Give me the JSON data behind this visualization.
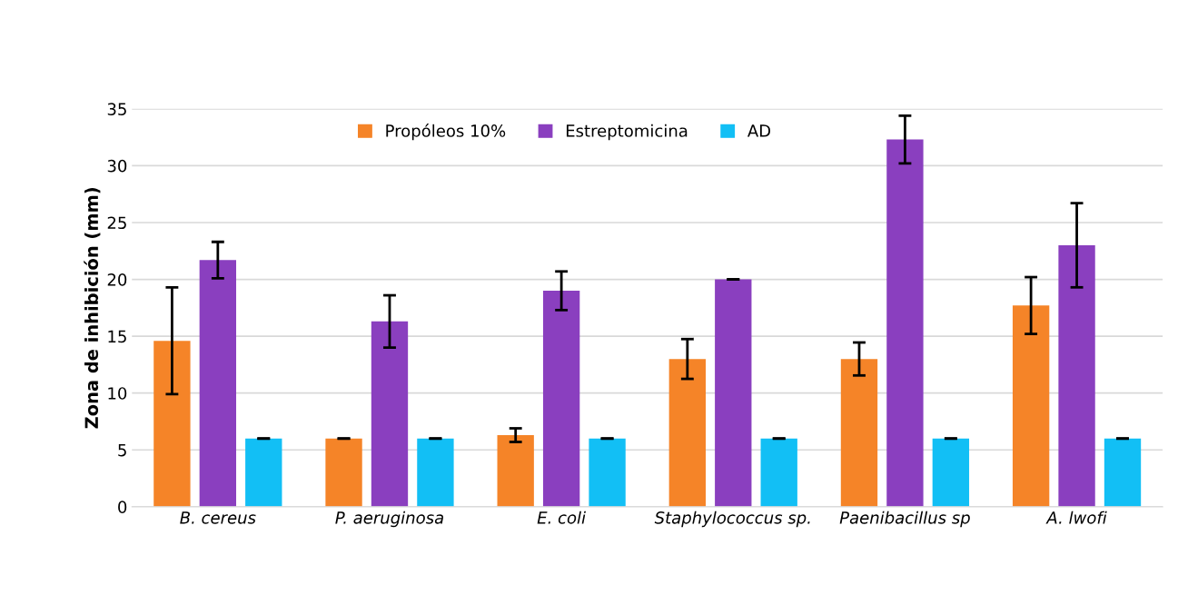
{
  "chart_data": {
    "type": "bar",
    "ylabel": "Zona de inhibición (mm)",
    "categories": [
      "B. cereus",
      "P. aeruginosa",
      "E. coli",
      "Staphylococcus sp.",
      "Paenibacillus sp",
      "A. lwofi"
    ],
    "series": [
      {
        "name": "Propóleos 10%",
        "color": "#f58428",
        "values": [
          14.6,
          6.0,
          6.3,
          13.0,
          13.0,
          17.7
        ],
        "errors": [
          4.7,
          0,
          0.6,
          1.75,
          1.45,
          2.5
        ]
      },
      {
        "name": "Estreptomicina",
        "color": "#8a3fbf",
        "values": [
          21.7,
          16.3,
          19.0,
          20.0,
          32.3,
          23.0
        ],
        "errors": [
          1.6,
          2.3,
          1.7,
          0,
          2.1,
          3.7
        ]
      },
      {
        "name": "AD",
        "color": "#12bff5",
        "values": [
          6.0,
          6.0,
          6.0,
          6.0,
          6.0,
          6.0
        ],
        "errors": [
          0,
          0,
          0,
          0,
          0,
          0
        ]
      }
    ],
    "ylim": [
      0,
      35
    ],
    "yticks": [
      0,
      5,
      10,
      15,
      20,
      25,
      30,
      35
    ],
    "grid": "y",
    "legend": "top"
  }
}
